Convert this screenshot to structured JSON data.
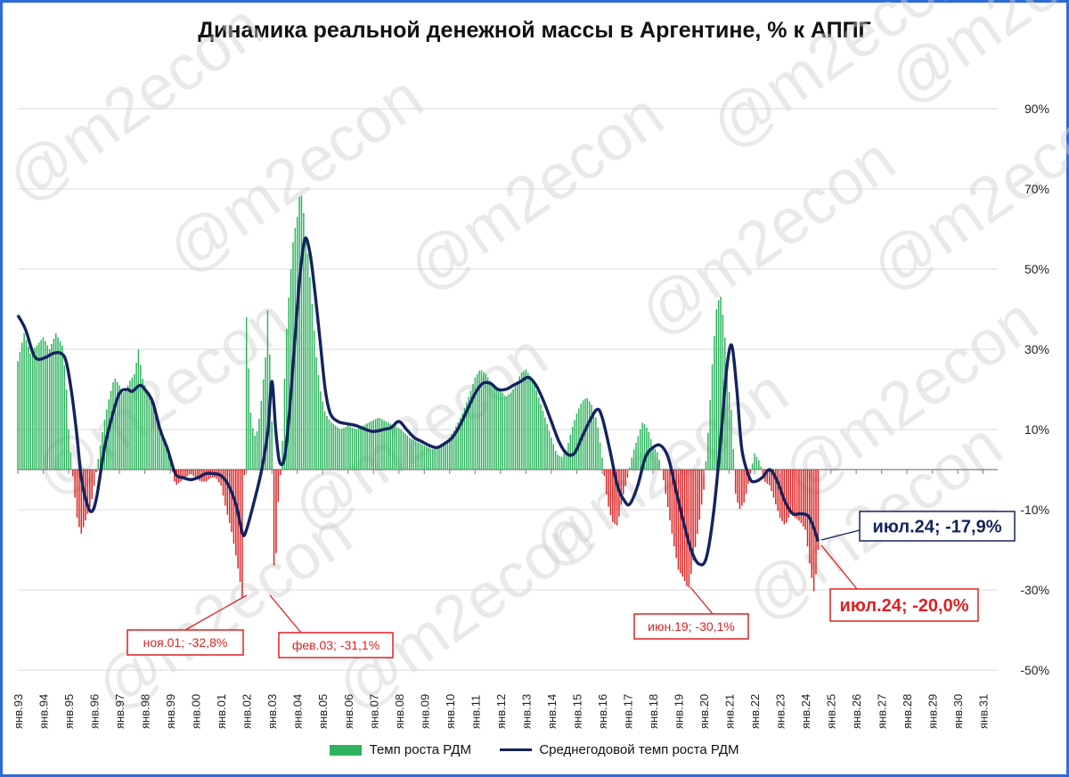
{
  "title": "Динамика реальной денежной массы в Аргентине, % к АППГ",
  "watermark": "@m2econ",
  "legend": {
    "bars": "Темп роста РДМ",
    "line": "Среднегодовой темп роста РДМ"
  },
  "colors": {
    "positive": "#2db35d",
    "negative": "#e02020",
    "line": "#14235e",
    "frame": "#2e6bd6"
  },
  "chart_data": {
    "type": "bar",
    "title": "Динамика реальной денежной массы в Аргентине, % к АППГ",
    "y_ticks": [
      "90%",
      "70%",
      "50%",
      "30%",
      "10%",
      "-10%",
      "-30%",
      "-50%"
    ],
    "ylim": [
      -50,
      90
    ],
    "x_ticks": [
      "янв.93",
      "янв.94",
      "янв.95",
      "янв.96",
      "янв.97",
      "янв.98",
      "янв.99",
      "янв.00",
      "янв.01",
      "янв.02",
      "янв.03",
      "янв.04",
      "янв.05",
      "янв.06",
      "янв.07",
      "янв.08",
      "янв.09",
      "янв.10",
      "янв.11",
      "янв.12",
      "янв.13",
      "янв.14",
      "янв.15",
      "янв.16",
      "янв.17",
      "янв.18",
      "янв.19",
      "янв.20",
      "янв.21",
      "янв.22",
      "янв.23",
      "янв.24",
      "янв.25",
      "янв.26",
      "янв.27",
      "янв.28",
      "янв.29",
      "янв.30",
      "янв.31"
    ],
    "x_range": [
      1993.0,
      2031.5
    ],
    "series": [
      {
        "name": "Темп роста РДМ",
        "kind": "bar",
        "points": [
          [
            1993.0,
            27
          ],
          [
            1993.25,
            34
          ],
          [
            1993.5,
            29
          ],
          [
            1993.75,
            31
          ],
          [
            1994.0,
            33
          ],
          [
            1994.25,
            30
          ],
          [
            1994.5,
            34
          ],
          [
            1994.75,
            31
          ],
          [
            1994.9,
            22
          ],
          [
            1995.0,
            10
          ],
          [
            1995.1,
            3
          ],
          [
            1995.2,
            -4
          ],
          [
            1995.35,
            -13
          ],
          [
            1995.5,
            -16
          ],
          [
            1995.7,
            -12
          ],
          [
            1995.9,
            -8
          ],
          [
            1996.0,
            -4
          ],
          [
            1996.2,
            4
          ],
          [
            1996.4,
            12
          ],
          [
            1996.6,
            18
          ],
          [
            1996.8,
            23
          ],
          [
            1997.0,
            21
          ],
          [
            1997.2,
            19
          ],
          [
            1997.4,
            22
          ],
          [
            1997.6,
            24
          ],
          [
            1997.75,
            30
          ],
          [
            1997.9,
            23
          ],
          [
            1998.1,
            19
          ],
          [
            1998.3,
            17
          ],
          [
            1998.5,
            13
          ],
          [
            1998.7,
            9
          ],
          [
            1998.85,
            5
          ],
          [
            1999.0,
            2
          ],
          [
            1999.2,
            -4
          ],
          [
            1999.4,
            -3
          ],
          [
            1999.6,
            -2
          ],
          [
            1999.8,
            -1
          ],
          [
            2000.0,
            -2
          ],
          [
            2000.2,
            -3
          ],
          [
            2000.4,
            -3
          ],
          [
            2000.6,
            -2
          ],
          [
            2000.8,
            -2
          ],
          [
            2001.0,
            -4
          ],
          [
            2001.2,
            -10
          ],
          [
            2001.4,
            -15
          ],
          [
            2001.6,
            -22
          ],
          [
            2001.75,
            -28
          ],
          [
            2001.85,
            -32.8
          ],
          [
            2002.0,
            38
          ],
          [
            2002.15,
            15
          ],
          [
            2002.3,
            8
          ],
          [
            2002.45,
            10
          ],
          [
            2002.6,
            18
          ],
          [
            2002.75,
            28
          ],
          [
            2002.85,
            42
          ],
          [
            2003.0,
            12
          ],
          [
            2003.1,
            -31.1
          ],
          [
            2003.25,
            -8
          ],
          [
            2003.4,
            4
          ],
          [
            2003.55,
            32
          ],
          [
            2003.7,
            46
          ],
          [
            2003.85,
            58
          ],
          [
            2004.0,
            63
          ],
          [
            2004.1,
            69
          ],
          [
            2004.2,
            68
          ],
          [
            2004.3,
            60
          ],
          [
            2004.45,
            52
          ],
          [
            2004.6,
            40
          ],
          [
            2004.75,
            28
          ],
          [
            2004.9,
            20
          ],
          [
            2005.1,
            14
          ],
          [
            2005.3,
            12
          ],
          [
            2005.5,
            11
          ],
          [
            2005.7,
            10
          ],
          [
            2006.0,
            11
          ],
          [
            2006.3,
            10
          ],
          [
            2006.6,
            11
          ],
          [
            2006.9,
            12
          ],
          [
            2007.2,
            13
          ],
          [
            2007.5,
            12
          ],
          [
            2007.8,
            11
          ],
          [
            2008.1,
            10
          ],
          [
            2008.4,
            8
          ],
          [
            2008.7,
            7
          ],
          [
            2009.0,
            6
          ],
          [
            2009.3,
            5
          ],
          [
            2009.6,
            6
          ],
          [
            2009.9,
            7
          ],
          [
            2010.2,
            10
          ],
          [
            2010.5,
            14
          ],
          [
            2010.8,
            19
          ],
          [
            2011.0,
            23
          ],
          [
            2011.2,
            25
          ],
          [
            2011.4,
            24
          ],
          [
            2011.6,
            22
          ],
          [
            2011.8,
            20
          ],
          [
            2012.0,
            20
          ],
          [
            2012.2,
            18
          ],
          [
            2012.4,
            19
          ],
          [
            2012.6,
            21
          ],
          [
            2012.8,
            24
          ],
          [
            2013.0,
            25
          ],
          [
            2013.2,
            23
          ],
          [
            2013.4,
            20
          ],
          [
            2013.6,
            16
          ],
          [
            2013.8,
            12
          ],
          [
            2014.0,
            8
          ],
          [
            2014.2,
            4
          ],
          [
            2014.4,
            3
          ],
          [
            2014.6,
            5
          ],
          [
            2014.8,
            10
          ],
          [
            2015.0,
            14
          ],
          [
            2015.2,
            17
          ],
          [
            2015.4,
            18
          ],
          [
            2015.6,
            16
          ],
          [
            2015.8,
            12
          ],
          [
            2016.0,
            3
          ],
          [
            2016.2,
            -8
          ],
          [
            2016.4,
            -13
          ],
          [
            2016.6,
            -14
          ],
          [
            2016.8,
            -7
          ],
          [
            2017.0,
            -2
          ],
          [
            2017.2,
            4
          ],
          [
            2017.4,
            8
          ],
          [
            2017.6,
            12
          ],
          [
            2017.8,
            10
          ],
          [
            2018.0,
            6
          ],
          [
            2018.2,
            4
          ],
          [
            2018.4,
            -2
          ],
          [
            2018.6,
            -10
          ],
          [
            2018.8,
            -18
          ],
          [
            2019.0,
            -25
          ],
          [
            2019.2,
            -27
          ],
          [
            2019.4,
            -30.1
          ],
          [
            2019.6,
            -22
          ],
          [
            2019.8,
            -14
          ],
          [
            2020.0,
            -5
          ],
          [
            2020.2,
            12
          ],
          [
            2020.35,
            28
          ],
          [
            2020.5,
            40
          ],
          [
            2020.65,
            44
          ],
          [
            2020.8,
            36
          ],
          [
            2020.95,
            22
          ],
          [
            2021.1,
            14
          ],
          [
            2021.25,
            -6
          ],
          [
            2021.4,
            -10
          ],
          [
            2021.6,
            -8
          ],
          [
            2021.8,
            -2
          ],
          [
            2022.0,
            4
          ],
          [
            2022.2,
            2
          ],
          [
            2022.4,
            -3
          ],
          [
            2022.6,
            -4
          ],
          [
            2022.8,
            -8
          ],
          [
            2023.0,
            -12
          ],
          [
            2023.2,
            -14
          ],
          [
            2023.4,
            -11
          ],
          [
            2023.6,
            -12
          ],
          [
            2023.8,
            -13
          ],
          [
            2024.0,
            -15
          ],
          [
            2024.2,
            -25
          ],
          [
            2024.35,
            -31
          ],
          [
            2024.5,
            -20
          ]
        ]
      },
      {
        "name": "Среднегодовой темп роста РДМ",
        "kind": "line",
        "points": [
          [
            1993.0,
            38.5
          ],
          [
            1993.3,
            35
          ],
          [
            1993.6,
            29
          ],
          [
            1993.8,
            27.5
          ],
          [
            1994.1,
            28
          ],
          [
            1994.4,
            29
          ],
          [
            1994.7,
            29
          ],
          [
            1994.9,
            27
          ],
          [
            1995.1,
            20
          ],
          [
            1995.3,
            10
          ],
          [
            1995.5,
            -2
          ],
          [
            1995.7,
            -8
          ],
          [
            1995.9,
            -10.5
          ],
          [
            1996.1,
            -7
          ],
          [
            1996.4,
            5
          ],
          [
            1996.7,
            13
          ],
          [
            1997.0,
            19
          ],
          [
            1997.3,
            20
          ],
          [
            1997.5,
            19.5
          ],
          [
            1997.8,
            21
          ],
          [
            1998.0,
            20
          ],
          [
            1998.3,
            17
          ],
          [
            1998.6,
            10
          ],
          [
            1998.9,
            5
          ],
          [
            1999.2,
            -1
          ],
          [
            1999.5,
            -2
          ],
          [
            1999.8,
            -2.5
          ],
          [
            2000.1,
            -2
          ],
          [
            2000.4,
            -1
          ],
          [
            2000.7,
            -1
          ],
          [
            2001.0,
            -1.5
          ],
          [
            2001.3,
            -4
          ],
          [
            2001.6,
            -9
          ],
          [
            2001.85,
            -16
          ],
          [
            2002.0,
            -15
          ],
          [
            2002.3,
            -8
          ],
          [
            2002.6,
            0
          ],
          [
            2002.85,
            10
          ],
          [
            2003.0,
            22
          ],
          [
            2003.15,
            10
          ],
          [
            2003.3,
            2
          ],
          [
            2003.5,
            3
          ],
          [
            2003.7,
            15
          ],
          [
            2003.9,
            32
          ],
          [
            2004.1,
            48
          ],
          [
            2004.3,
            57.5
          ],
          [
            2004.5,
            54
          ],
          [
            2004.7,
            44
          ],
          [
            2004.9,
            32
          ],
          [
            2005.1,
            20
          ],
          [
            2005.3,
            14
          ],
          [
            2005.6,
            12
          ],
          [
            2005.9,
            11.5
          ],
          [
            2006.3,
            11
          ],
          [
            2006.7,
            10
          ],
          [
            2007.0,
            9.5
          ],
          [
            2007.4,
            10
          ],
          [
            2007.7,
            10.5
          ],
          [
            2008.0,
            12
          ],
          [
            2008.3,
            10
          ],
          [
            2008.6,
            8
          ],
          [
            2008.9,
            7
          ],
          [
            2009.2,
            6
          ],
          [
            2009.5,
            5.5
          ],
          [
            2009.8,
            6.5
          ],
          [
            2010.1,
            8
          ],
          [
            2010.4,
            11
          ],
          [
            2010.7,
            15
          ],
          [
            2011.0,
            19
          ],
          [
            2011.3,
            21.5
          ],
          [
            2011.6,
            21.5
          ],
          [
            2011.9,
            20
          ],
          [
            2012.2,
            20
          ],
          [
            2012.5,
            21
          ],
          [
            2012.8,
            22
          ],
          [
            2013.1,
            23
          ],
          [
            2013.4,
            21
          ],
          [
            2013.7,
            17
          ],
          [
            2014.0,
            12
          ],
          [
            2014.3,
            7
          ],
          [
            2014.6,
            4
          ],
          [
            2014.9,
            4
          ],
          [
            2015.2,
            8
          ],
          [
            2015.5,
            12
          ],
          [
            2015.8,
            15
          ],
          [
            2016.0,
            13
          ],
          [
            2016.3,
            5
          ],
          [
            2016.6,
            -4
          ],
          [
            2016.9,
            -8
          ],
          [
            2017.1,
            -8.5
          ],
          [
            2017.4,
            -4
          ],
          [
            2017.7,
            3
          ],
          [
            2018.0,
            5.5
          ],
          [
            2018.3,
            6
          ],
          [
            2018.6,
            3
          ],
          [
            2018.9,
            -5
          ],
          [
            2019.2,
            -13
          ],
          [
            2019.5,
            -20
          ],
          [
            2019.8,
            -23.5
          ],
          [
            2020.1,
            -22
          ],
          [
            2020.4,
            -10
          ],
          [
            2020.7,
            10
          ],
          [
            2020.9,
            25
          ],
          [
            2021.1,
            31
          ],
          [
            2021.3,
            20
          ],
          [
            2021.5,
            5
          ],
          [
            2021.8,
            -2
          ],
          [
            2022.0,
            -3
          ],
          [
            2022.3,
            -2
          ],
          [
            2022.6,
            0
          ],
          [
            2022.9,
            -3
          ],
          [
            2023.2,
            -8
          ],
          [
            2023.5,
            -11
          ],
          [
            2023.8,
            -11
          ],
          [
            2024.1,
            -11.5
          ],
          [
            2024.3,
            -14
          ],
          [
            2024.5,
            -17.9
          ]
        ]
      }
    ],
    "annotations": [
      {
        "text": "ноя.01; -32,8%",
        "x": 2001.85,
        "y": -32.8,
        "color": "red"
      },
      {
        "text": "фев.03; -31,1%",
        "x": 2003.1,
        "y": -31.1,
        "color": "red"
      },
      {
        "text": "июн.19; -30,1%",
        "x": 2019.4,
        "y": -30.1,
        "color": "red"
      },
      {
        "text": "июл.24; -17,9%",
        "x": 2024.5,
        "y": -17.9,
        "color": "navy"
      },
      {
        "text": "июл.24; -20,0%",
        "x": 2024.5,
        "y": -20.0,
        "color": "red"
      }
    ]
  }
}
